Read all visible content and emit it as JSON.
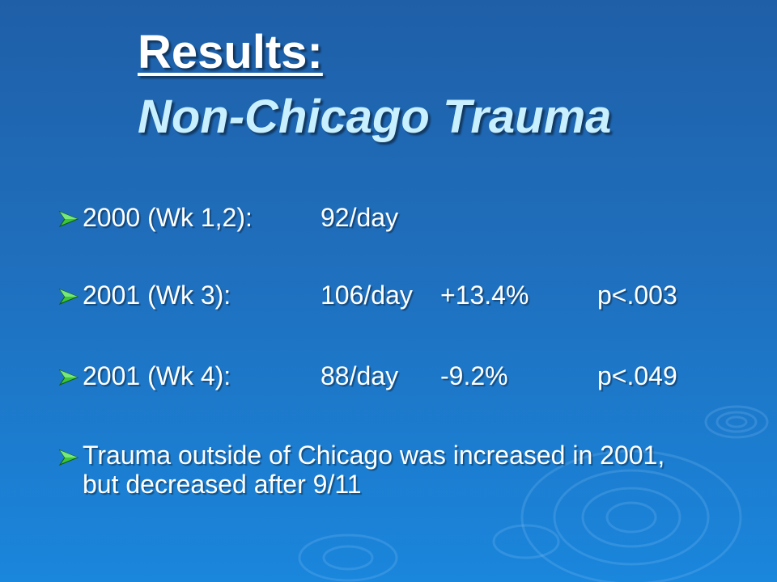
{
  "slide": {
    "title_line1": "Results:",
    "title_line2": "Non-Chicago Trauma",
    "bullets": [
      {
        "label": "2000 (Wk 1,2):",
        "rate": "92/day",
        "change": "",
        "p_value": ""
      },
      {
        "label": "2001 (Wk 3):",
        "rate": "106/day",
        "change": "+13.4%",
        "p_value": "p<.003"
      },
      {
        "label": "2001 (Wk 4):",
        "rate": "88/day",
        "change": "-9.2%",
        "p_value": "p<.049"
      }
    ],
    "summary": "Trauma outside of Chicago was increased in 2001, but decreased after 9/11"
  },
  "colors": {
    "background_top": "#1f5fa8",
    "background_bottom": "#1a86dc",
    "title": "#ffffff",
    "subtitle": "#c9f0ff",
    "bullet_arrow": "#3cc43c"
  },
  "icons": {
    "bullet": "green-arrow-bullet-icon",
    "decoration": "water-ripple-decoration"
  }
}
